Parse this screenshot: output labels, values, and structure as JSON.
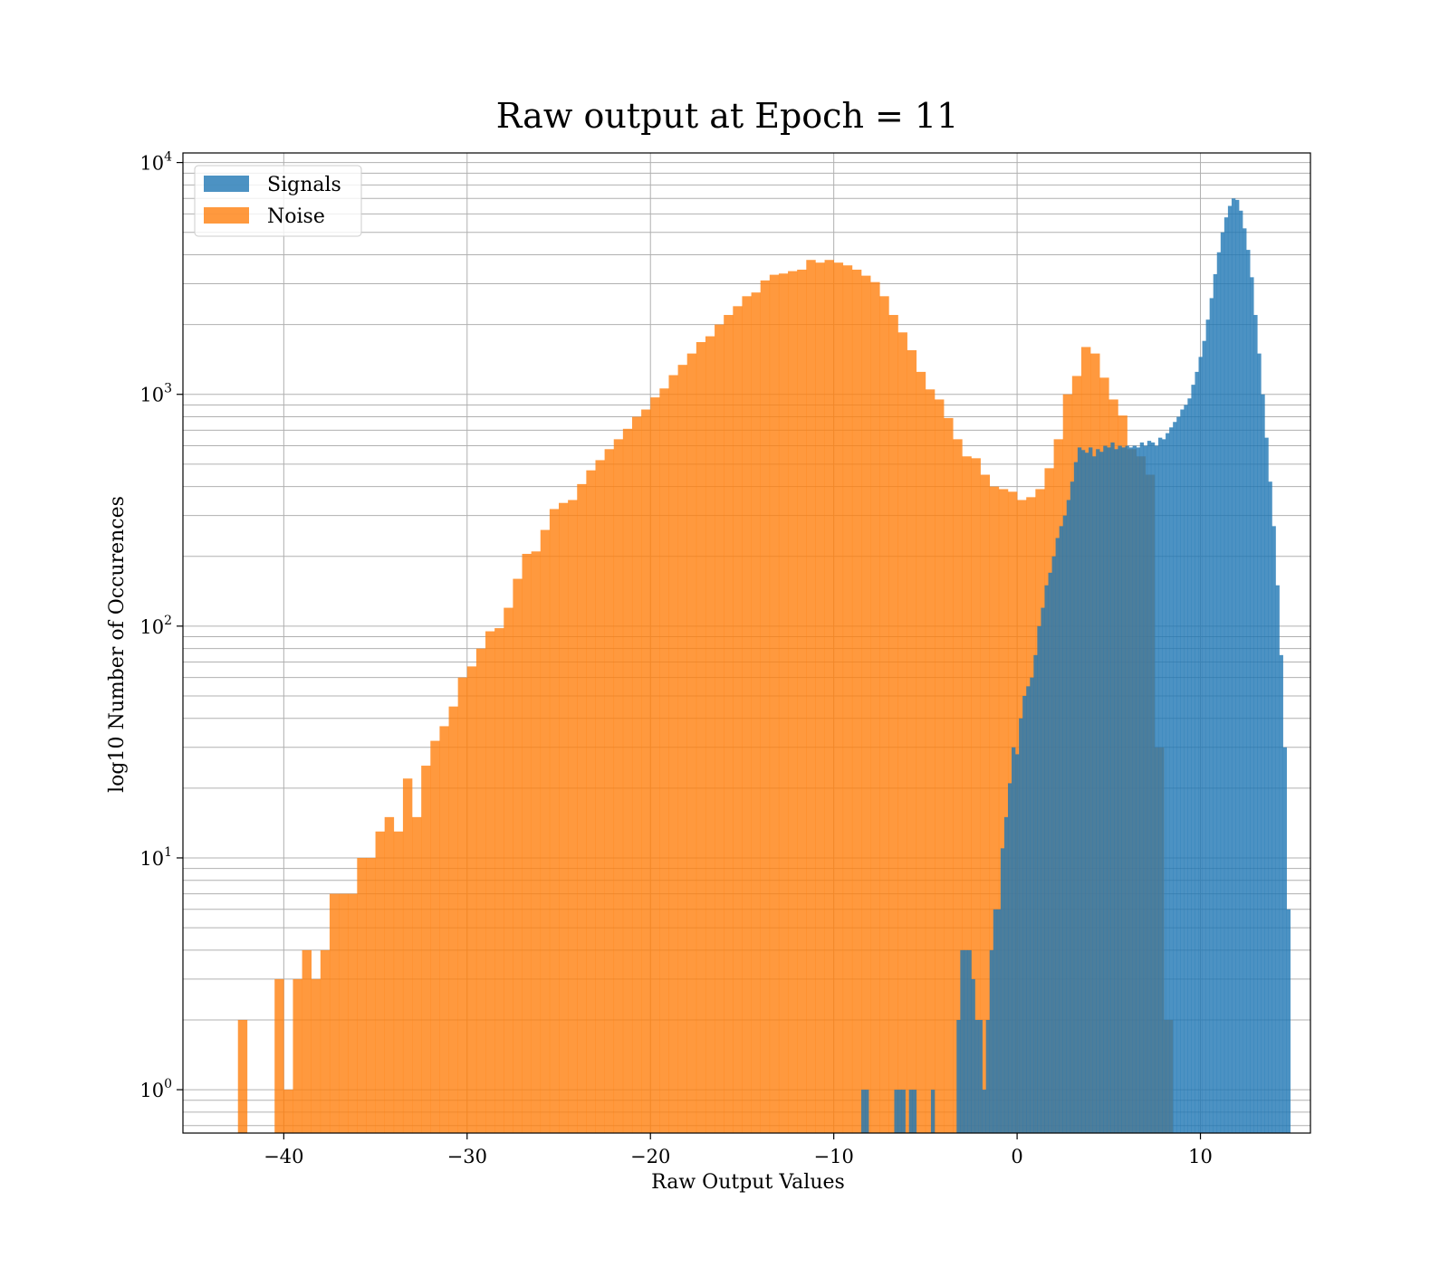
{
  "chart_data": {
    "type": "bar",
    "title": "Raw output at Epoch = 11",
    "xlabel": "Raw Output Values",
    "ylabel": "log10 Number of Occurences",
    "xlim": [
      -45.5,
      16
    ],
    "ylim": [
      0.65,
      11000
    ],
    "yscale": "log",
    "grid": true,
    "legend": "top-left",
    "xticks": [
      -40,
      -30,
      -20,
      -10,
      0,
      10
    ],
    "xtick_labels": [
      "−40",
      "−30",
      "−20",
      "−10",
      "0",
      "10"
    ],
    "yticks": [
      {
        "value": 1,
        "base": "10",
        "exp": "0"
      },
      {
        "value": 10,
        "base": "10",
        "exp": "1"
      },
      {
        "value": 100,
        "base": "10",
        "exp": "2"
      },
      {
        "value": 1000,
        "base": "10",
        "exp": "3"
      },
      {
        "value": 10000,
        "base": "10",
        "exp": "4"
      }
    ],
    "colors": {
      "signals": "#1f77b4",
      "noise": "#ff7f0e"
    },
    "series": [
      {
        "name": "Signals",
        "key": "signals",
        "bin_start": -8.5,
        "bin_width": 0.2,
        "values": [
          1,
          1,
          0,
          0,
          0,
          0,
          0,
          0,
          0,
          1,
          1,
          1,
          0,
          1,
          1,
          0,
          0,
          0,
          0,
          1,
          0,
          0,
          0,
          0,
          0,
          0,
          2,
          4,
          4,
          4,
          3,
          2,
          2,
          1,
          2,
          4,
          6,
          6,
          11,
          15,
          21,
          30,
          28,
          40,
          50,
          55,
          60,
          75,
          100,
          120,
          150,
          170,
          200,
          240,
          270,
          300,
          350,
          420,
          510,
          590,
          575,
          560,
          590,
          540,
          580,
          565,
          600,
          590,
          620,
          580,
          600,
          590,
          600,
          590,
          600,
          590,
          620,
          600,
          630,
          620,
          600,
          650,
          640,
          680,
          720,
          760,
          800,
          860,
          900,
          960,
          1100,
          1250,
          1450,
          1700,
          2100,
          2600,
          3300,
          4100,
          5000,
          5800,
          6500,
          7000,
          6900,
          6200,
          5200,
          4200,
          3200,
          2200,
          1500,
          1000,
          650,
          420,
          270,
          150,
          75,
          30,
          6
        ]
      },
      {
        "name": "Noise",
        "key": "noise",
        "bin_start": -43,
        "bin_width": 0.5,
        "values": [
          0,
          2,
          0,
          0,
          0,
          3,
          1,
          3,
          4,
          3,
          4,
          7,
          7,
          7,
          10,
          10,
          13,
          15,
          13,
          22,
          15,
          25,
          32,
          37,
          45,
          60,
          67,
          80,
          95,
          98,
          120,
          160,
          205,
          210,
          260,
          320,
          340,
          350,
          410,
          470,
          520,
          580,
          640,
          710,
          800,
          860,
          970,
          1060,
          1210,
          1340,
          1500,
          1680,
          1780,
          2000,
          2200,
          2400,
          2650,
          2750,
          3100,
          3280,
          3320,
          3400,
          3450,
          3800,
          3700,
          3800,
          3700,
          3600,
          3450,
          3250,
          3050,
          2650,
          2200,
          1850,
          1550,
          1250,
          1050,
          950,
          790,
          640,
          540,
          530,
          450,
          400,
          390,
          380,
          350,
          360,
          390,
          480,
          640,
          1000,
          1200,
          1600,
          1500,
          1180,
          950,
          810,
          580,
          540,
          450,
          30,
          2
        ]
      }
    ]
  }
}
